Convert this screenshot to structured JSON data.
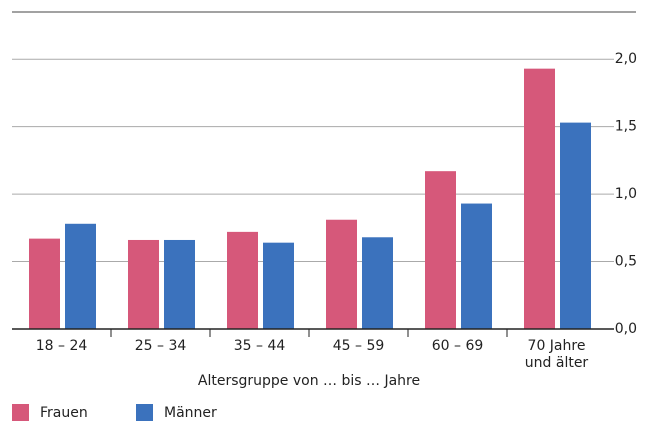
{
  "chart_data": {
    "type": "bar",
    "categories": [
      "18 – 24",
      "25 – 34",
      "35 – 44",
      "45 – 59",
      "60 – 69",
      "70 Jahre\nund älter"
    ],
    "x_label": "Altersgruppe von … bis … Jahre",
    "series": [
      {
        "name": "Frauen",
        "color": "#d6587a",
        "values": [
          0.67,
          0.66,
          0.72,
          0.81,
          1.17,
          1.93
        ]
      },
      {
        "name": "Männer",
        "color": "#3b72bd",
        "values": [
          0.78,
          0.66,
          0.64,
          0.68,
          0.93,
          1.53
        ]
      }
    ],
    "ylim": [
      0,
      2.35
    ],
    "yticks": [
      {
        "value": 0,
        "label": "0,0"
      },
      {
        "value": 0.5,
        "label": "0,5"
      },
      {
        "value": 1,
        "label": "1,0"
      },
      {
        "value": 1.5,
        "label": "1,5"
      },
      {
        "value": 2,
        "label": "2,0"
      }
    ],
    "grid": true,
    "legend": "bottom-left"
  }
}
